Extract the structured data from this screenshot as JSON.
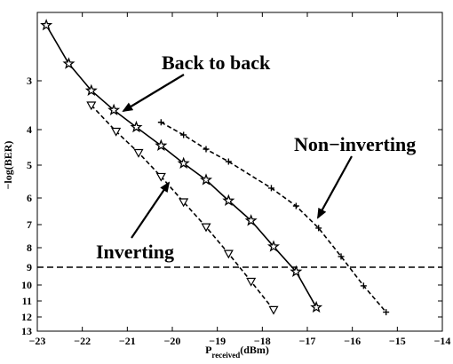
{
  "chart_data": {
    "type": "line",
    "title": "",
    "xlabel": {
      "main": "P",
      "sub": "received",
      "unit": "(dBm)"
    },
    "ylabel": "−log(BER)",
    "xlim": [
      -23,
      -14
    ],
    "ylim": [
      2.2,
      13
    ],
    "y_scale": "-log(-log) style nonlinear (tick values 3..13)",
    "x_ticks": [
      -23,
      -22,
      -21,
      -20,
      -19,
      -18,
      -17,
      -16,
      -15,
      -14
    ],
    "x_tick_labels": [
      "−23",
      "−22",
      "−21",
      "−20",
      "−19",
      "−18",
      "−17",
      "−16",
      "−15",
      "−14"
    ],
    "y_ticks": [
      3,
      4,
      5,
      6,
      7,
      8,
      9,
      10,
      11,
      12,
      13
    ],
    "y_tick_labels": [
      "3",
      "4",
      "5",
      "6",
      "7",
      "8",
      "9",
      "10",
      "11",
      "12",
      "13"
    ],
    "grid": false,
    "reference_line": {
      "y": 9,
      "style": "dashed"
    },
    "series": [
      {
        "name": "Back to back",
        "line_style": "solid",
        "marker": "star",
        "x": [
          -22.8,
          -22.3,
          -21.8,
          -21.3,
          -20.8,
          -20.25,
          -19.75,
          -19.25,
          -18.75,
          -18.25,
          -17.75,
          -17.25,
          -16.8
        ],
        "y": [
          2.35,
          2.8,
          3.2,
          3.6,
          3.95,
          4.45,
          4.95,
          5.45,
          6.1,
          6.85,
          7.95,
          9.25,
          11.4
        ]
      },
      {
        "name": "Inverting",
        "line_style": "dashed",
        "marker": "triangle-down",
        "x": [
          -21.8,
          -21.25,
          -20.75,
          -20.25,
          -19.75,
          -19.25,
          -18.75,
          -18.25,
          -17.75
        ],
        "y": [
          3.5,
          4.05,
          4.65,
          5.35,
          6.15,
          7.1,
          8.3,
          9.8,
          11.55
        ]
      },
      {
        "name": "Non-inverting",
        "line_style": "dashed",
        "marker": "plus",
        "x": [
          -20.25,
          -19.75,
          -19.25,
          -18.75,
          -17.8,
          -17.25,
          -16.75,
          -16.25,
          -15.75,
          -15.25
        ],
        "y": [
          3.85,
          4.15,
          4.55,
          4.9,
          5.7,
          6.3,
          7.15,
          8.45,
          10.05,
          11.7
        ]
      }
    ],
    "annotations": [
      {
        "text": "Back to back"
      },
      {
        "text": "Non−inverting"
      },
      {
        "text": "Inverting"
      }
    ],
    "colors": {
      "foreground": "#000000",
      "background": "#ffffff"
    }
  }
}
